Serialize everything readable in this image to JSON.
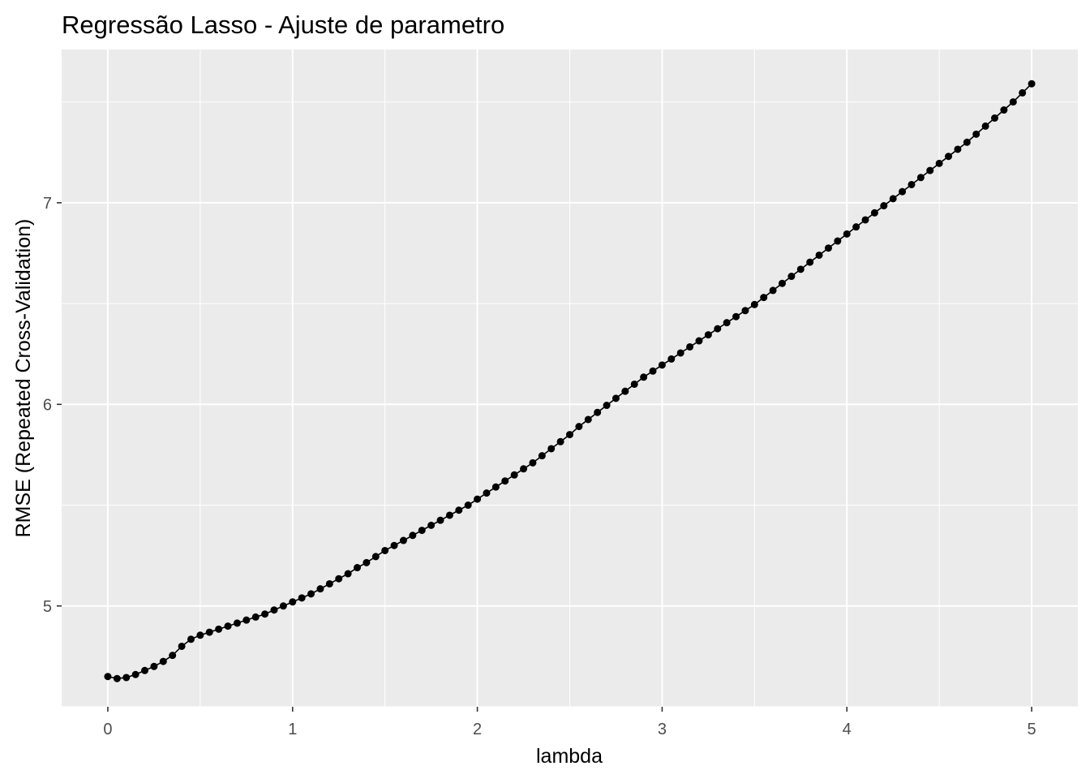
{
  "chart_data": {
    "type": "line",
    "title": "Regressão Lasso - Ajuste de parametro",
    "xlabel": "lambda",
    "ylabel": "RMSE (Repeated Cross-Validation)",
    "xlim": [
      -0.25,
      5.25
    ],
    "ylim": [
      4.5,
      7.76
    ],
    "x_ticks": [
      0,
      1,
      2,
      3,
      4,
      5
    ],
    "x_tick_labels": [
      "0",
      "1",
      "2",
      "3",
      "4",
      "5"
    ],
    "y_ticks": [
      5,
      6,
      7
    ],
    "y_tick_labels": [
      "5",
      "6",
      "7"
    ],
    "grid": true,
    "legend": "none",
    "colors": {
      "panel": "#ebebeb",
      "grid": "#ffffff",
      "series": "#000000",
      "tick": "#333333"
    },
    "series": [
      {
        "x": [
          0,
          0.05,
          0.1,
          0.15,
          0.2,
          0.25,
          0.3,
          0.35,
          0.4,
          0.45,
          0.5,
          0.55,
          0.6,
          0.65,
          0.7,
          0.75,
          0.8,
          0.85,
          0.9,
          0.95,
          1,
          1.05,
          1.1,
          1.15,
          1.2,
          1.25,
          1.3,
          1.35,
          1.4,
          1.45,
          1.5,
          1.55,
          1.6,
          1.65,
          1.7,
          1.75,
          1.8,
          1.85,
          1.9,
          1.95,
          2,
          2.05,
          2.1,
          2.15,
          2.2,
          2.25,
          2.3,
          2.35,
          2.4,
          2.45,
          2.5,
          2.55,
          2.6,
          2.65,
          2.7,
          2.75,
          2.8,
          2.85,
          2.9,
          2.95,
          3,
          3.05,
          3.1,
          3.15,
          3.2,
          3.25,
          3.3,
          3.35,
          3.4,
          3.45,
          3.5,
          3.55,
          3.6,
          3.65,
          3.7,
          3.75,
          3.8,
          3.85,
          3.9,
          3.95,
          4,
          4.05,
          4.1,
          4.15,
          4.2,
          4.25,
          4.3,
          4.35,
          4.4,
          4.45,
          4.5,
          4.55,
          4.6,
          4.65,
          4.7,
          4.75,
          4.8,
          4.85,
          4.9,
          4.95,
          5
        ],
        "y": [
          4.65,
          4.64,
          4.645,
          4.66,
          4.68,
          4.7,
          4.725,
          4.755,
          4.8,
          4.835,
          4.855,
          4.87,
          4.885,
          4.9,
          4.915,
          4.93,
          4.945,
          4.96,
          4.98,
          5.0,
          5.02,
          5.04,
          5.06,
          5.085,
          5.11,
          5.135,
          5.16,
          5.19,
          5.215,
          5.245,
          5.275,
          5.3,
          5.325,
          5.35,
          5.375,
          5.4,
          5.425,
          5.45,
          5.475,
          5.5,
          5.53,
          5.56,
          5.59,
          5.62,
          5.65,
          5.68,
          5.71,
          5.745,
          5.78,
          5.815,
          5.85,
          5.89,
          5.925,
          5.96,
          5.995,
          6.03,
          6.065,
          6.1,
          6.135,
          6.165,
          6.195,
          6.225,
          6.255,
          6.285,
          6.315,
          6.345,
          6.375,
          6.405,
          6.435,
          6.465,
          6.495,
          6.53,
          6.565,
          6.6,
          6.635,
          6.67,
          6.705,
          6.74,
          6.775,
          6.81,
          6.845,
          6.88,
          6.915,
          6.95,
          6.985,
          7.02,
          7.055,
          7.09,
          7.125,
          7.16,
          7.195,
          7.23,
          7.265,
          7.3,
          7.34,
          7.38,
          7.42,
          7.46,
          7.5,
          7.545,
          7.59
        ]
      }
    ]
  }
}
